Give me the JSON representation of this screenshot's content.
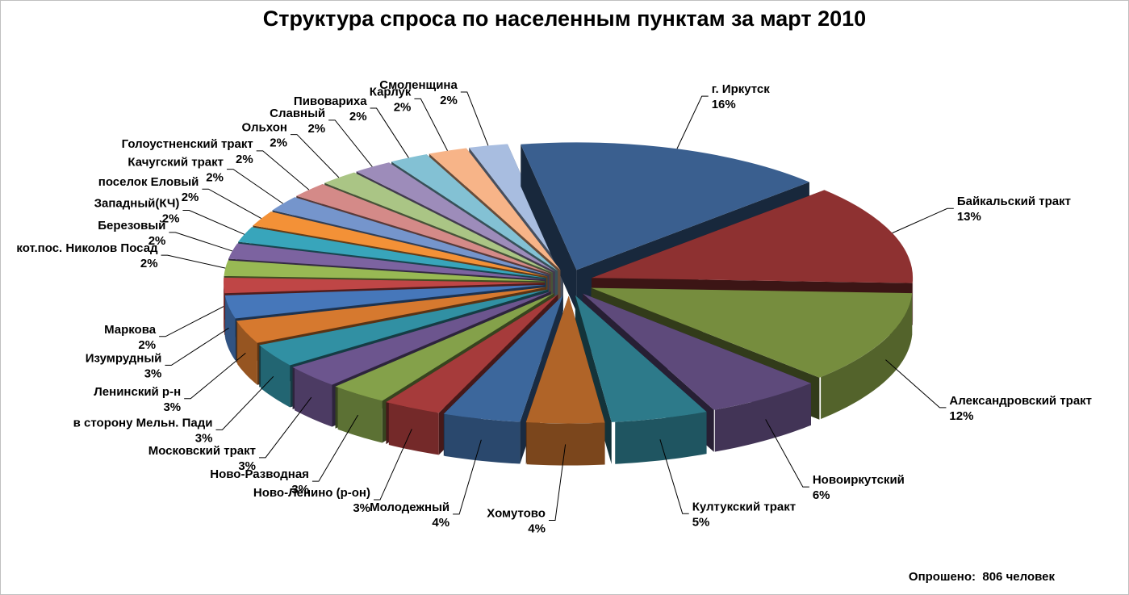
{
  "chart_data": {
    "type": "pie",
    "title": "Структура спроса по населенным пунктам за март 2010",
    "data_labels": "name and percent",
    "exploded": true,
    "three_d": true,
    "slices": [
      {
        "label": "г. Иркутск",
        "percent": "16%",
        "value": 16,
        "color": "#3a5f8f"
      },
      {
        "label": "Байкальский тракт",
        "percent": "13%",
        "value": 13,
        "color": "#8e3131"
      },
      {
        "label": "Александровский тракт",
        "percent": "12%",
        "value": 12,
        "color": "#768d3e"
      },
      {
        "label": "Новоиркутский",
        "percent": "6%",
        "value": 6,
        "color": "#5e4a7b"
      },
      {
        "label": "Култукский тракт",
        "percent": "5%",
        "value": 5,
        "color": "#2d7a8a"
      },
      {
        "label": "Хомутово",
        "percent": "4%",
        "value": 4,
        "color": "#b06428"
      },
      {
        "label": "Молодежный",
        "percent": "4%",
        "value": 4,
        "color": "#3c679c"
      },
      {
        "label": "Ново-Ленино (р-он)",
        "percent": "3%",
        "value": 3,
        "color": "#a63b3b"
      },
      {
        "label": "Ново-Разводная",
        "percent": "3%",
        "value": 3,
        "color": "#84a14a"
      },
      {
        "label": "Московский тракт",
        "percent": "3%",
        "value": 3,
        "color": "#6c558e"
      },
      {
        "label": "в сторону Мельн. Пади",
        "percent": "3%",
        "value": 3,
        "color": "#3190a3"
      },
      {
        "label": "Ленинский р-н",
        "percent": "3%",
        "value": 3,
        "color": "#d6792f"
      },
      {
        "label": "Изумрудный",
        "percent": "3%",
        "value": 3,
        "color": "#4677ba"
      },
      {
        "label": "Маркова",
        "percent": "2%",
        "value": 2,
        "color": "#bf4646"
      },
      {
        "label": "кот.пос. Николов Посад",
        "percent": "2%",
        "value": 2,
        "color": "#98b954"
      },
      {
        "label": "Березовый",
        "percent": "2%",
        "value": 2,
        "color": "#7c63a0"
      },
      {
        "label": "Западный(КЧ)",
        "percent": "2%",
        "value": 2,
        "color": "#38a5bb"
      },
      {
        "label": "поселок Еловый",
        "percent": "2%",
        "value": 2,
        "color": "#f39137"
      },
      {
        "label": "Качугский тракт",
        "percent": "2%",
        "value": 2,
        "color": "#7595cc"
      },
      {
        "label": "Голоустненский тракт",
        "percent": "2%",
        "value": 2,
        "color": "#d48a88"
      },
      {
        "label": "Ольхон",
        "percent": "2%",
        "value": 2,
        "color": "#aac585"
      },
      {
        "label": "Славный",
        "percent": "2%",
        "value": 2,
        "color": "#9d8cba"
      },
      {
        "label": "Пивовариха",
        "percent": "2%",
        "value": 2,
        "color": "#83c1d4"
      },
      {
        "label": "Карлук",
        "percent": "2%",
        "value": 2,
        "color": "#f7b488"
      },
      {
        "label": "Смоленщина",
        "percent": "2%",
        "value": 2,
        "color": "#a8bde0"
      }
    ]
  },
  "footnote": {
    "label": "Опрошено:",
    "count": "806",
    "unit": "человек"
  }
}
